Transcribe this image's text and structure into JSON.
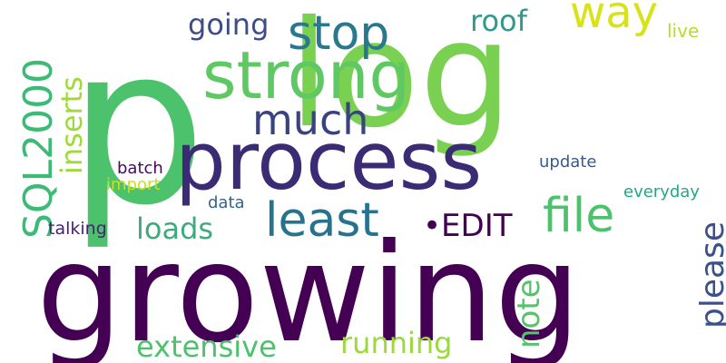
{
  "word_cloud": {
    "words": [
      {
        "text": "p",
        "color": "#4cc26c"
      },
      {
        "text": "log",
        "color": "#7ad151"
      },
      {
        "text": "growing",
        "color": "#440154"
      },
      {
        "text": "process",
        "color": "#3b2a74"
      },
      {
        "text": "strong",
        "color": "#5ec962"
      },
      {
        "text": "stop",
        "color": "#2a788e"
      },
      {
        "text": "way",
        "color": "#d8e219"
      },
      {
        "text": "much",
        "color": "#38437f"
      },
      {
        "text": "least",
        "color": "#27728e"
      },
      {
        "text": "file",
        "color": "#4cc26c"
      },
      {
        "text": "SQL2000",
        "color": "#3bbb75"
      },
      {
        "text": "inserts",
        "color": "#9fda3a"
      },
      {
        "text": "going",
        "color": "#3e4c8a"
      },
      {
        "text": "roof",
        "color": "#2e9a8c"
      },
      {
        "text": "live",
        "color": "#b5de2b"
      },
      {
        "text": "•EDIT",
        "color": "#440154"
      },
      {
        "text": "loads",
        "color": "#3faa7f"
      },
      {
        "text": "please",
        "color": "#3b518b"
      },
      {
        "text": "note",
        "color": "#53c568"
      },
      {
        "text": "extensive",
        "color": "#4cc26c"
      },
      {
        "text": "running",
        "color": "#9bd93c"
      },
      {
        "text": "batch",
        "color": "#46085c"
      },
      {
        "text": "import",
        "color": "#c8e020"
      },
      {
        "text": "update",
        "color": "#38598c"
      },
      {
        "text": "data",
        "color": "#33638d"
      },
      {
        "text": "everyday",
        "color": "#22a884"
      },
      {
        "text": "talking",
        "color": "#482173"
      }
    ]
  }
}
